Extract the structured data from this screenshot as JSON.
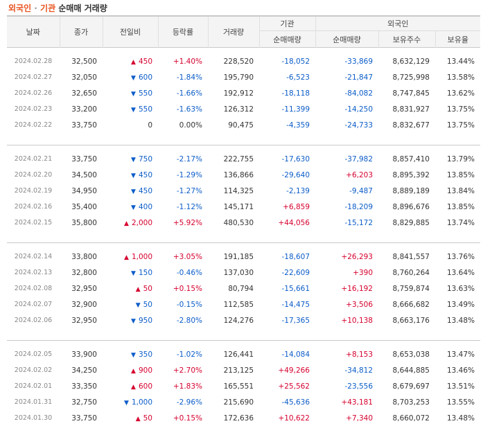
{
  "title": {
    "part1": "외국인",
    "sep": " · ",
    "part2": "기관",
    "part3": " 순매매 거래량"
  },
  "headers": {
    "date": "날짜",
    "close": "종가",
    "change": "전일비",
    "rate": "등락률",
    "volume": "거래량",
    "inst_group": "기관",
    "inst_net": "순매매량",
    "foreign_group": "외국인",
    "foreign_net": "순매매량",
    "foreign_shares": "보유주수",
    "foreign_ratio": "보유율"
  },
  "colors": {
    "up": "#d6002e",
    "down": "#0b5cc8",
    "brand": "#e8521d"
  },
  "groups": [
    [
      {
        "date": "2024.02.28",
        "close": "32,500",
        "dir": "up",
        "change": "450",
        "rate": "+1.40%",
        "volume": "228,520",
        "inst": "-18,052",
        "foreign": "-33,869",
        "shares": "8,632,129",
        "ratio": "13.44%"
      },
      {
        "date": "2024.02.27",
        "close": "32,050",
        "dir": "down",
        "change": "600",
        "rate": "-1.84%",
        "volume": "195,790",
        "inst": "-6,523",
        "foreign": "-21,847",
        "shares": "8,725,998",
        "ratio": "13.58%"
      },
      {
        "date": "2024.02.26",
        "close": "32,650",
        "dir": "down",
        "change": "550",
        "rate": "-1.66%",
        "volume": "192,912",
        "inst": "-18,118",
        "foreign": "-84,082",
        "shares": "8,747,845",
        "ratio": "13.62%"
      },
      {
        "date": "2024.02.23",
        "close": "33,200",
        "dir": "down",
        "change": "550",
        "rate": "-1.63%",
        "volume": "126,312",
        "inst": "-11,399",
        "foreign": "-14,250",
        "shares": "8,831,927",
        "ratio": "13.75%"
      },
      {
        "date": "2024.02.22",
        "close": "33,750",
        "dir": "flat",
        "change": "0",
        "rate": "0.00%",
        "volume": "90,475",
        "inst": "-4,359",
        "foreign": "-24,733",
        "shares": "8,832,677",
        "ratio": "13.75%"
      }
    ],
    [
      {
        "date": "2024.02.21",
        "close": "33,750",
        "dir": "down",
        "change": "750",
        "rate": "-2.17%",
        "volume": "222,755",
        "inst": "-17,630",
        "foreign": "-37,982",
        "shares": "8,857,410",
        "ratio": "13.79%"
      },
      {
        "date": "2024.02.20",
        "close": "34,500",
        "dir": "down",
        "change": "450",
        "rate": "-1.29%",
        "volume": "136,866",
        "inst": "-29,640",
        "foreign": "+6,203",
        "shares": "8,895,392",
        "ratio": "13.85%"
      },
      {
        "date": "2024.02.19",
        "close": "34,950",
        "dir": "down",
        "change": "450",
        "rate": "-1.27%",
        "volume": "114,325",
        "inst": "-2,139",
        "foreign": "-9,487",
        "shares": "8,889,189",
        "ratio": "13.84%"
      },
      {
        "date": "2024.02.16",
        "close": "35,400",
        "dir": "down",
        "change": "400",
        "rate": "-1.12%",
        "volume": "145,171",
        "inst": "+6,859",
        "foreign": "-18,209",
        "shares": "8,896,676",
        "ratio": "13.85%"
      },
      {
        "date": "2024.02.15",
        "close": "35,800",
        "dir": "up",
        "change": "2,000",
        "rate": "+5.92%",
        "volume": "480,530",
        "inst": "+44,056",
        "foreign": "-15,172",
        "shares": "8,829,885",
        "ratio": "13.74%"
      }
    ],
    [
      {
        "date": "2024.02.14",
        "close": "33,800",
        "dir": "up",
        "change": "1,000",
        "rate": "+3.05%",
        "volume": "191,185",
        "inst": "-18,607",
        "foreign": "+26,293",
        "shares": "8,841,557",
        "ratio": "13.76%"
      },
      {
        "date": "2024.02.13",
        "close": "32,800",
        "dir": "down",
        "change": "150",
        "rate": "-0.46%",
        "volume": "137,030",
        "inst": "-22,609",
        "foreign": "+390",
        "shares": "8,760,264",
        "ratio": "13.64%"
      },
      {
        "date": "2024.02.08",
        "close": "32,950",
        "dir": "up",
        "change": "50",
        "rate": "+0.15%",
        "volume": "80,794",
        "inst": "-15,661",
        "foreign": "+16,192",
        "shares": "8,759,874",
        "ratio": "13.63%"
      },
      {
        "date": "2024.02.07",
        "close": "32,900",
        "dir": "down",
        "change": "50",
        "rate": "-0.15%",
        "volume": "112,585",
        "inst": "-14,475",
        "foreign": "+3,506",
        "shares": "8,666,682",
        "ratio": "13.49%"
      },
      {
        "date": "2024.02.06",
        "close": "32,950",
        "dir": "down",
        "change": "950",
        "rate": "-2.80%",
        "volume": "124,276",
        "inst": "-17,365",
        "foreign": "+10,138",
        "shares": "8,663,176",
        "ratio": "13.48%"
      }
    ],
    [
      {
        "date": "2024.02.05",
        "close": "33,900",
        "dir": "down",
        "change": "350",
        "rate": "-1.02%",
        "volume": "126,441",
        "inst": "-14,084",
        "foreign": "+8,153",
        "shares": "8,653,038",
        "ratio": "13.47%"
      },
      {
        "date": "2024.02.02",
        "close": "34,250",
        "dir": "up",
        "change": "900",
        "rate": "+2.70%",
        "volume": "213,125",
        "inst": "+49,266",
        "foreign": "-34,812",
        "shares": "8,644,885",
        "ratio": "13.46%"
      },
      {
        "date": "2024.02.01",
        "close": "33,350",
        "dir": "up",
        "change": "600",
        "rate": "+1.83%",
        "volume": "165,551",
        "inst": "+25,562",
        "foreign": "-23,556",
        "shares": "8,679,697",
        "ratio": "13.51%"
      },
      {
        "date": "2024.01.31",
        "close": "32,750",
        "dir": "down",
        "change": "1,000",
        "rate": "-2.96%",
        "volume": "215,690",
        "inst": "-45,636",
        "foreign": "+43,181",
        "shares": "8,703,253",
        "ratio": "13.55%"
      },
      {
        "date": "2024.01.30",
        "close": "33,750",
        "dir": "up",
        "change": "50",
        "rate": "+0.15%",
        "volume": "172,636",
        "inst": "+10,622",
        "foreign": "+7,340",
        "shares": "8,660,072",
        "ratio": "13.48%"
      }
    ]
  ]
}
